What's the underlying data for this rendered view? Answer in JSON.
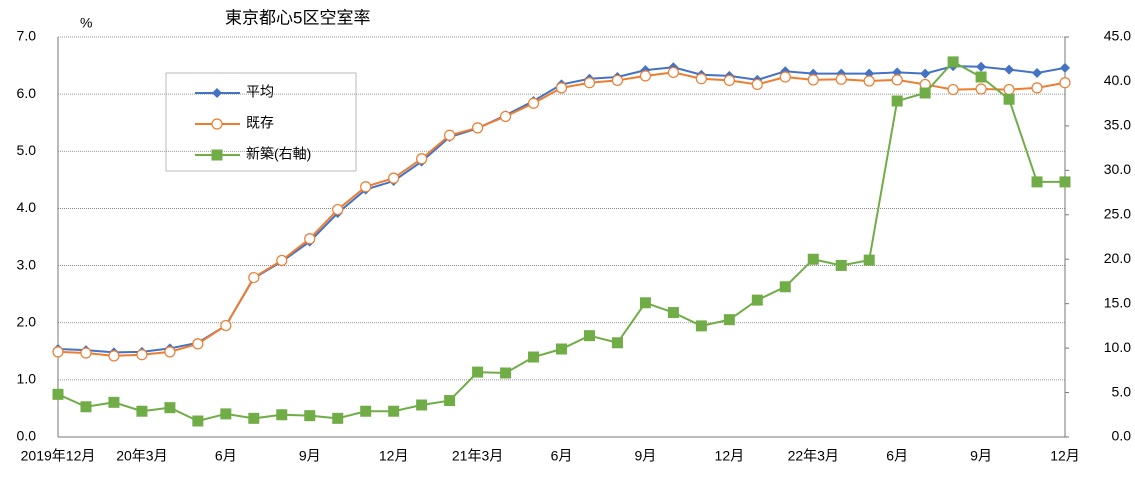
{
  "chart_data": {
    "type": "line",
    "title": "東京都心5区空室率",
    "y_label": "%",
    "categories": [
      "2019年12月",
      null,
      null,
      "20年3月",
      null,
      null,
      "6月",
      null,
      null,
      "9月",
      null,
      null,
      "12月",
      null,
      null,
      "21年3月",
      null,
      null,
      "6月",
      null,
      null,
      "9月",
      null,
      null,
      "12月",
      null,
      null,
      "22年3月",
      null,
      null,
      "6月",
      null,
      null,
      "9月",
      null,
      null,
      "12月"
    ],
    "series": [
      {
        "name": "平均",
        "color": "#4472c4",
        "marker": "diamond",
        "axis": "y",
        "values": [
          1.54,
          1.52,
          1.48,
          1.49,
          1.55,
          1.65,
          1.95,
          2.78,
          3.07,
          3.42,
          3.92,
          4.33,
          4.48,
          4.82,
          5.25,
          5.4,
          5.63,
          5.88,
          6.17,
          6.27,
          6.3,
          6.42,
          6.47,
          6.34,
          6.32,
          6.25,
          6.4,
          6.36,
          6.36,
          6.36,
          6.38,
          6.36,
          6.49,
          6.48,
          6.43,
          6.37,
          6.46
        ]
      },
      {
        "name": "既存",
        "color": "#ed7d31",
        "marker": "circle",
        "axis": "y",
        "values": [
          1.49,
          1.47,
          1.42,
          1.44,
          1.49,
          1.63,
          1.95,
          2.79,
          3.09,
          3.47,
          3.98,
          4.38,
          4.53,
          4.87,
          5.28,
          5.41,
          5.61,
          5.84,
          6.11,
          6.2,
          6.24,
          6.32,
          6.38,
          6.27,
          6.24,
          6.17,
          6.3,
          6.25,
          6.26,
          6.23,
          6.25,
          6.17,
          6.08,
          6.09,
          6.08,
          6.11,
          6.2
        ]
      },
      {
        "name": "新築(右軸)",
        "color": "#70ad47",
        "marker": "square",
        "axis": "y2",
        "values": [
          4.8,
          3.4,
          3.9,
          2.9,
          3.3,
          1.8,
          2.6,
          2.1,
          2.5,
          2.4,
          2.1,
          2.9,
          2.9,
          3.6,
          4.1,
          7.3,
          7.2,
          9.0,
          9.9,
          11.4,
          10.6,
          15.1,
          14.0,
          12.5,
          13.2,
          15.4,
          16.9,
          20.0,
          19.3,
          19.9,
          37.8,
          38.7,
          42.2,
          40.5,
          38.0,
          28.7,
          28.7
        ]
      }
    ],
    "ylim": [
      0,
      7
    ],
    "yticks": [
      {
        "value": 0,
        "label": "0.0"
      },
      {
        "value": 1,
        "label": "1.0"
      },
      {
        "value": 2,
        "label": "2.0"
      },
      {
        "value": 3,
        "label": "3.0"
      },
      {
        "value": 4,
        "label": "4.0"
      },
      {
        "value": 5,
        "label": "5.0"
      },
      {
        "value": 6,
        "label": "6.0"
      },
      {
        "value": 7,
        "label": "7.0"
      }
    ],
    "y2lim": [
      0,
      45
    ],
    "y2ticks": [
      {
        "value": 0,
        "label": "0.0"
      },
      {
        "value": 5,
        "label": "5.0"
      },
      {
        "value": 10,
        "label": "10.0"
      },
      {
        "value": 15,
        "label": "15.0"
      },
      {
        "value": 20,
        "label": "20.0"
      },
      {
        "value": 25,
        "label": "25.0"
      },
      {
        "value": 30,
        "label": "30.0"
      },
      {
        "value": 35,
        "label": "35.0"
      },
      {
        "value": 40,
        "label": "40.0"
      },
      {
        "value": 45,
        "label": "45.0"
      }
    ],
    "grid": true
  }
}
